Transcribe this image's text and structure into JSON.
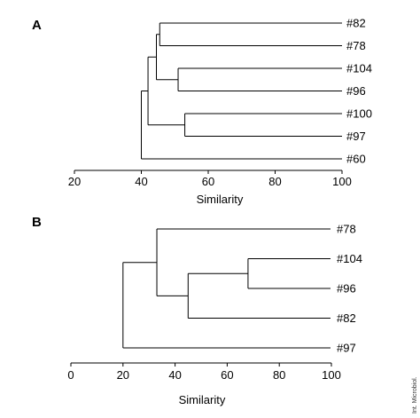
{
  "credit": "Int. Microbiol.",
  "panels": [
    {
      "id": "A",
      "letter": "A",
      "axis": {
        "title": "Similarity",
        "min": 20,
        "max": 100,
        "ticks": [
          20,
          40,
          60,
          80,
          100
        ]
      },
      "leaves": [
        "#82",
        "#78",
        "#104",
        "#96",
        "#100",
        "#97",
        "#60"
      ],
      "nodes": [
        {
          "children": [
            0,
            1
          ],
          "similarity": 45.5
        },
        {
          "children": [
            2,
            3
          ],
          "similarity": 51
        },
        {
          "children": [
            4,
            5
          ],
          "similarity": 53
        },
        {
          "children": [
            "n0",
            "n1"
          ],
          "similarity": 44.5
        },
        {
          "children": [
            "n3",
            "n2"
          ],
          "similarity": 42
        },
        {
          "children": [
            "n4",
            6
          ],
          "similarity": 40
        }
      ]
    },
    {
      "id": "B",
      "letter": "B",
      "axis": {
        "title": "Similarity",
        "min": 0,
        "max": 100,
        "ticks": [
          0,
          20,
          40,
          60,
          80,
          100
        ]
      },
      "leaves": [
        "#78",
        "#104",
        "#96",
        "#82",
        "#97"
      ],
      "nodes": [
        {
          "children": [
            1,
            2
          ],
          "similarity": 68
        },
        {
          "children": [
            "n0",
            3
          ],
          "similarity": 45
        },
        {
          "children": [
            0,
            "n1"
          ],
          "similarity": 33
        },
        {
          "children": [
            "n2",
            4
          ],
          "similarity": 20
        }
      ]
    }
  ]
}
